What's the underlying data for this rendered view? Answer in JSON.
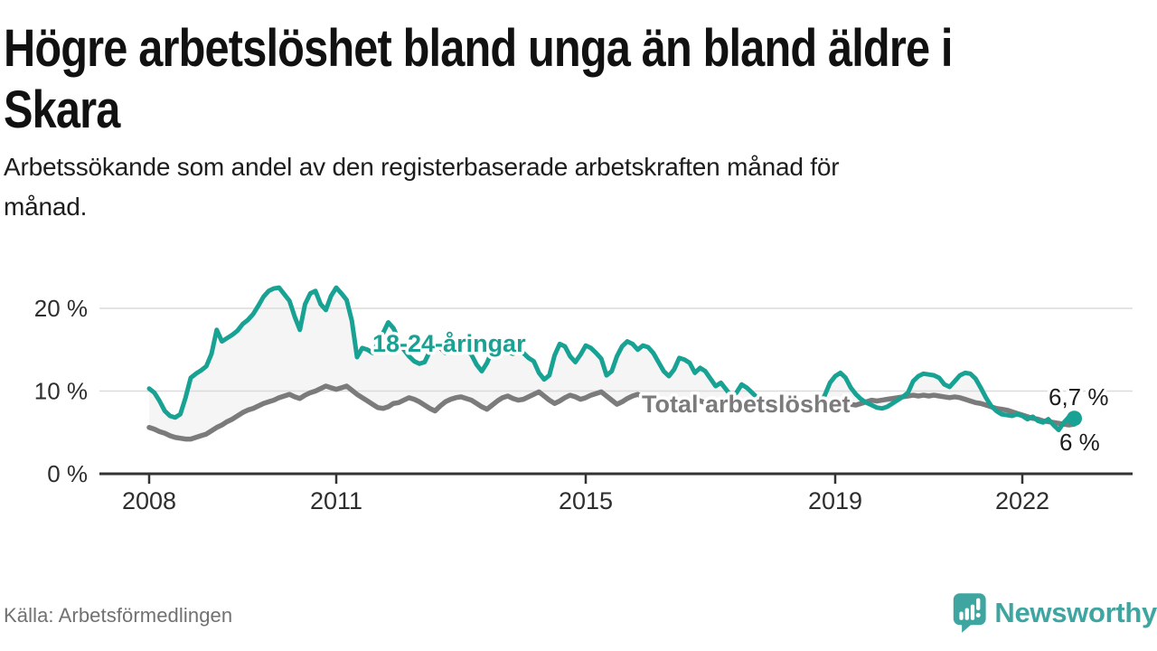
{
  "title": "Högre arbetslöshet bland unga än bland äldre i Skara",
  "title_lines": [
    "Högre arbetslöshet bland unga än bland äldre i",
    "Skara"
  ],
  "subtitle": "Arbetssökande som andel av den registerbaserade arbetskraften månad för månad.",
  "subtitle_lines": [
    "Arbetssökande som andel av den registerbaserade arbetskraften månad för",
    "månad."
  ],
  "source": "Källa: Arbetsförmedlingen",
  "branding": {
    "name": "Newsworthy",
    "icon": "bar-chart-speech-bubble-icon",
    "color": "#3EA5A1"
  },
  "colors": {
    "young_line": "#17A293",
    "total_line": "#7B7B7B",
    "between_fill": "rgba(125,125,125,0.08)",
    "gridline": "#DBDBDB",
    "axis": "#333333",
    "text_dark": "#1c1c1c"
  },
  "chart_data": {
    "type": "line",
    "title": "Högre arbetslöshet bland unga än bland äldre i Skara",
    "xlabel": "",
    "ylabel": "",
    "unit": "%",
    "x_start": "2008-01",
    "x_end": "2022-11",
    "x_step": "monthly",
    "xlim": [
      2007.2,
      2023.8
    ],
    "ylim": [
      0,
      24
    ],
    "grid": "horizontal",
    "legend_position": "inline-labels",
    "xticks": [
      2008,
      2011,
      2015,
      2019,
      2022
    ],
    "yticks": [
      0,
      10,
      20
    ],
    "yticklabels": [
      "0 %",
      "10 %",
      "20 %"
    ],
    "series": [
      {
        "name": "18-24-åringar",
        "color": "#17A293",
        "end_label": "6,7 %",
        "end_value": 6.7,
        "end_dot": true,
        "values": [
          10.3,
          9.8,
          8.8,
          7.6,
          7.0,
          6.8,
          7.2,
          9.2,
          11.6,
          12.1,
          12.5,
          13.0,
          14.5,
          17.4,
          16.0,
          16.4,
          16.8,
          17.3,
          18.1,
          18.6,
          19.3,
          20.3,
          21.4,
          22.1,
          22.4,
          22.5,
          21.7,
          20.9,
          19.0,
          17.4,
          20.5,
          21.8,
          22.1,
          20.5,
          19.8,
          21.5,
          22.5,
          21.8,
          21.0,
          18.5,
          14.1,
          15.2,
          15.0,
          14.6,
          15.8,
          17.0,
          18.3,
          17.6,
          16.2,
          15.0,
          14.2,
          13.6,
          13.3,
          13.5,
          14.8,
          15.5,
          15.2,
          14.6,
          14.9,
          15.3,
          15.5,
          15.0,
          14.4,
          13.2,
          12.4,
          13.4,
          14.9,
          15.7,
          15.3,
          14.8,
          14.5,
          14.9,
          14.6,
          14.0,
          13.6,
          12.2,
          11.4,
          11.9,
          14.3,
          15.7,
          15.4,
          14.2,
          13.5,
          14.4,
          15.5,
          15.2,
          14.6,
          13.9,
          11.9,
          12.4,
          14.2,
          15.4,
          16.0,
          15.7,
          15.0,
          15.5,
          15.3,
          14.6,
          13.5,
          12.4,
          11.8,
          12.6,
          14.0,
          13.8,
          13.4,
          12.2,
          12.8,
          12.4,
          11.5,
          10.6,
          11.0,
          10.2,
          9.4,
          9.8,
          10.8,
          10.4,
          9.8,
          9.2,
          8.8,
          9.0,
          8.2,
          7.9,
          7.7,
          7.6,
          7.8,
          8.0,
          8.4,
          8.2,
          7.9,
          8.3,
          9.5,
          11.0,
          11.8,
          12.2,
          11.6,
          10.4,
          9.6,
          9.0,
          8.6,
          8.3,
          8.0,
          7.9,
          8.1,
          8.5,
          8.9,
          9.3,
          9.8,
          11.2,
          11.8,
          12.1,
          12.0,
          11.9,
          11.6,
          10.8,
          10.5,
          11.2,
          11.9,
          12.2,
          12.1,
          11.5,
          10.4,
          9.2,
          8.2,
          7.6,
          7.2,
          7.1,
          7.0,
          7.2,
          7.0,
          6.6,
          6.9,
          6.4,
          6.2,
          6.6,
          5.9,
          5.3,
          6.2,
          6.9,
          6.7
        ]
      },
      {
        "name": "Total arbetslöshet",
        "color": "#7B7B7B",
        "end_label": "6 %",
        "end_value": 6.0,
        "end_dot": false,
        "values": [
          5.6,
          5.4,
          5.1,
          4.9,
          4.6,
          4.4,
          4.3,
          4.2,
          4.2,
          4.4,
          4.6,
          4.8,
          5.2,
          5.6,
          5.9,
          6.3,
          6.6,
          7.0,
          7.4,
          7.7,
          7.9,
          8.2,
          8.5,
          8.7,
          8.9,
          9.2,
          9.4,
          9.6,
          9.3,
          9.1,
          9.5,
          9.8,
          10.0,
          10.3,
          10.6,
          10.4,
          10.2,
          10.4,
          10.6,
          10.1,
          9.6,
          9.2,
          8.8,
          8.4,
          8.0,
          7.9,
          8.1,
          8.5,
          8.6,
          8.9,
          9.2,
          9.0,
          8.7,
          8.3,
          7.9,
          7.6,
          8.2,
          8.7,
          9.0,
          9.2,
          9.3,
          9.1,
          8.9,
          8.5,
          8.1,
          7.8,
          8.3,
          8.8,
          9.2,
          9.4,
          9.1,
          8.9,
          9.0,
          9.3,
          9.6,
          9.9,
          9.4,
          8.9,
          8.5,
          8.8,
          9.2,
          9.5,
          9.3,
          9.0,
          9.2,
          9.5,
          9.7,
          9.9,
          9.4,
          8.9,
          8.4,
          8.7,
          9.1,
          9.4,
          9.6,
          9.3,
          9.1,
          8.9,
          8.7,
          8.4,
          8.1,
          7.9,
          8.2,
          8.6,
          8.9,
          9.1,
          8.8,
          8.6,
          8.5,
          8.7,
          8.9,
          8.6,
          8.3,
          8.0,
          8.3,
          8.6,
          8.8,
          8.6,
          8.4,
          8.5,
          8.6,
          8.7,
          8.5,
          8.3,
          8.2,
          8.4,
          8.6,
          8.7,
          8.5,
          8.4,
          8.6,
          8.8,
          8.9,
          8.8,
          8.6,
          8.4,
          8.3,
          8.5,
          8.7,
          8.9,
          8.8,
          8.9,
          9.0,
          9.1,
          9.2,
          9.3,
          9.4,
          9.5,
          9.4,
          9.5,
          9.4,
          9.5,
          9.4,
          9.3,
          9.2,
          9.3,
          9.2,
          9.0,
          8.8,
          8.6,
          8.5,
          8.3,
          8.1,
          7.9,
          7.8,
          7.7,
          7.5,
          7.3,
          7.1,
          6.9,
          6.7,
          6.6,
          6.4,
          6.3,
          6.2,
          6.1,
          6.0,
          5.9,
          6.0
        ]
      }
    ]
  }
}
